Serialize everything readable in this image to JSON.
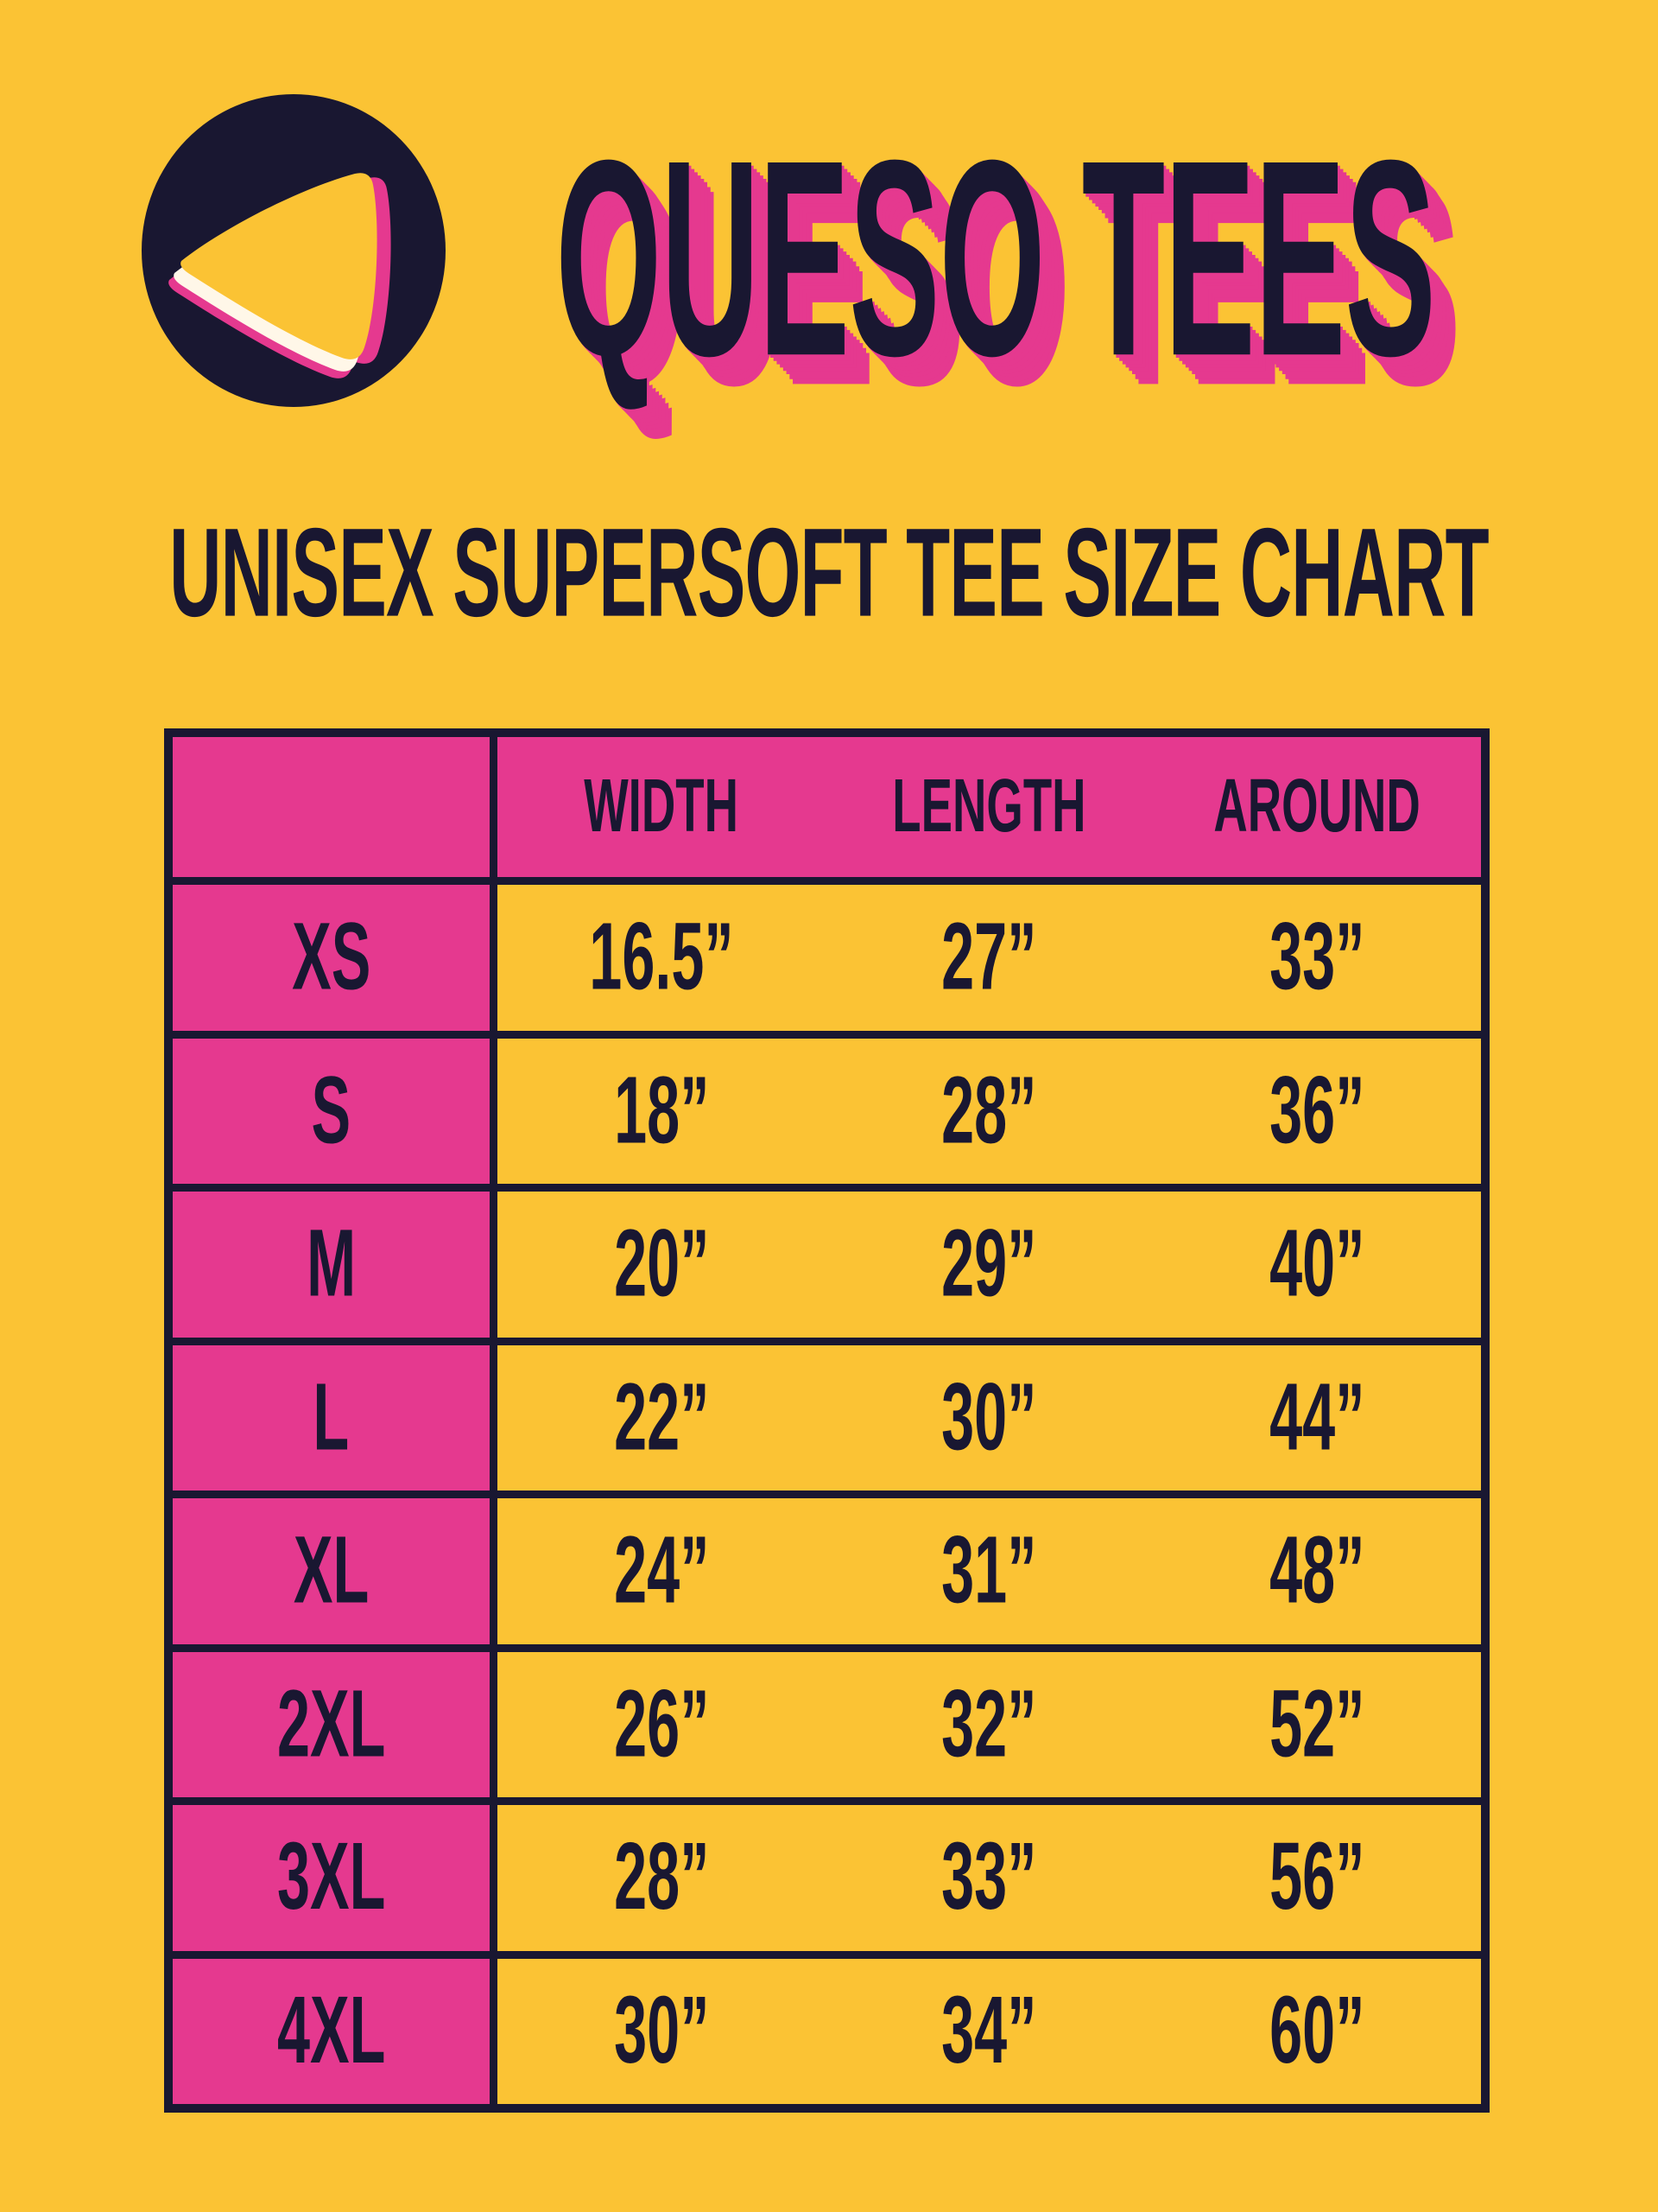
{
  "page": {
    "background_color": "#FBC334",
    "accent_pink": "#E5398F",
    "ink_navy": "#191731",
    "chip_highlight_white": "#FFF7E8"
  },
  "logo": {
    "icon": "tortilla-chip-logo",
    "shape": "navy circle containing yellow tortilla chip with white and pink edge stripes"
  },
  "header": {
    "brand": "QUESO TEES"
  },
  "subtitle": "UNISEX SUPERSOFT TEE SIZE CHART",
  "table": {
    "columns": [
      "WIDTH",
      "LENGTH",
      "AROUND"
    ],
    "rows": [
      {
        "size": "XS",
        "width": "16.5”",
        "length": "27”",
        "around": "33”"
      },
      {
        "size": "S",
        "width": "18”",
        "length": "28”",
        "around": "36”"
      },
      {
        "size": "M",
        "width": "20”",
        "length": "29”",
        "around": "40”"
      },
      {
        "size": "L",
        "width": "22”",
        "length": "30”",
        "around": "44”"
      },
      {
        "size": "XL",
        "width": "24”",
        "length": "31”",
        "around": "48”"
      },
      {
        "size": "2XL",
        "width": "26”",
        "length": "32”",
        "around": "52”"
      },
      {
        "size": "3XL",
        "width": "28”",
        "length": "33”",
        "around": "56”"
      },
      {
        "size": "4XL",
        "width": "30”",
        "length": "34”",
        "around": "60”"
      }
    ]
  },
  "chart_data": {
    "type": "table",
    "title": "UNISEX SUPERSOFT TEE SIZE CHART",
    "categories": [
      "XS",
      "S",
      "M",
      "L",
      "XL",
      "2XL",
      "3XL",
      "4XL"
    ],
    "series": [
      {
        "name": "WIDTH",
        "unit": "inches",
        "values": [
          16.5,
          18,
          20,
          22,
          24,
          26,
          28,
          30
        ]
      },
      {
        "name": "LENGTH",
        "unit": "inches",
        "values": [
          27,
          28,
          29,
          30,
          31,
          32,
          33,
          34
        ]
      },
      {
        "name": "AROUND",
        "unit": "inches",
        "values": [
          33,
          36,
          40,
          44,
          48,
          52,
          56,
          60
        ]
      }
    ]
  }
}
